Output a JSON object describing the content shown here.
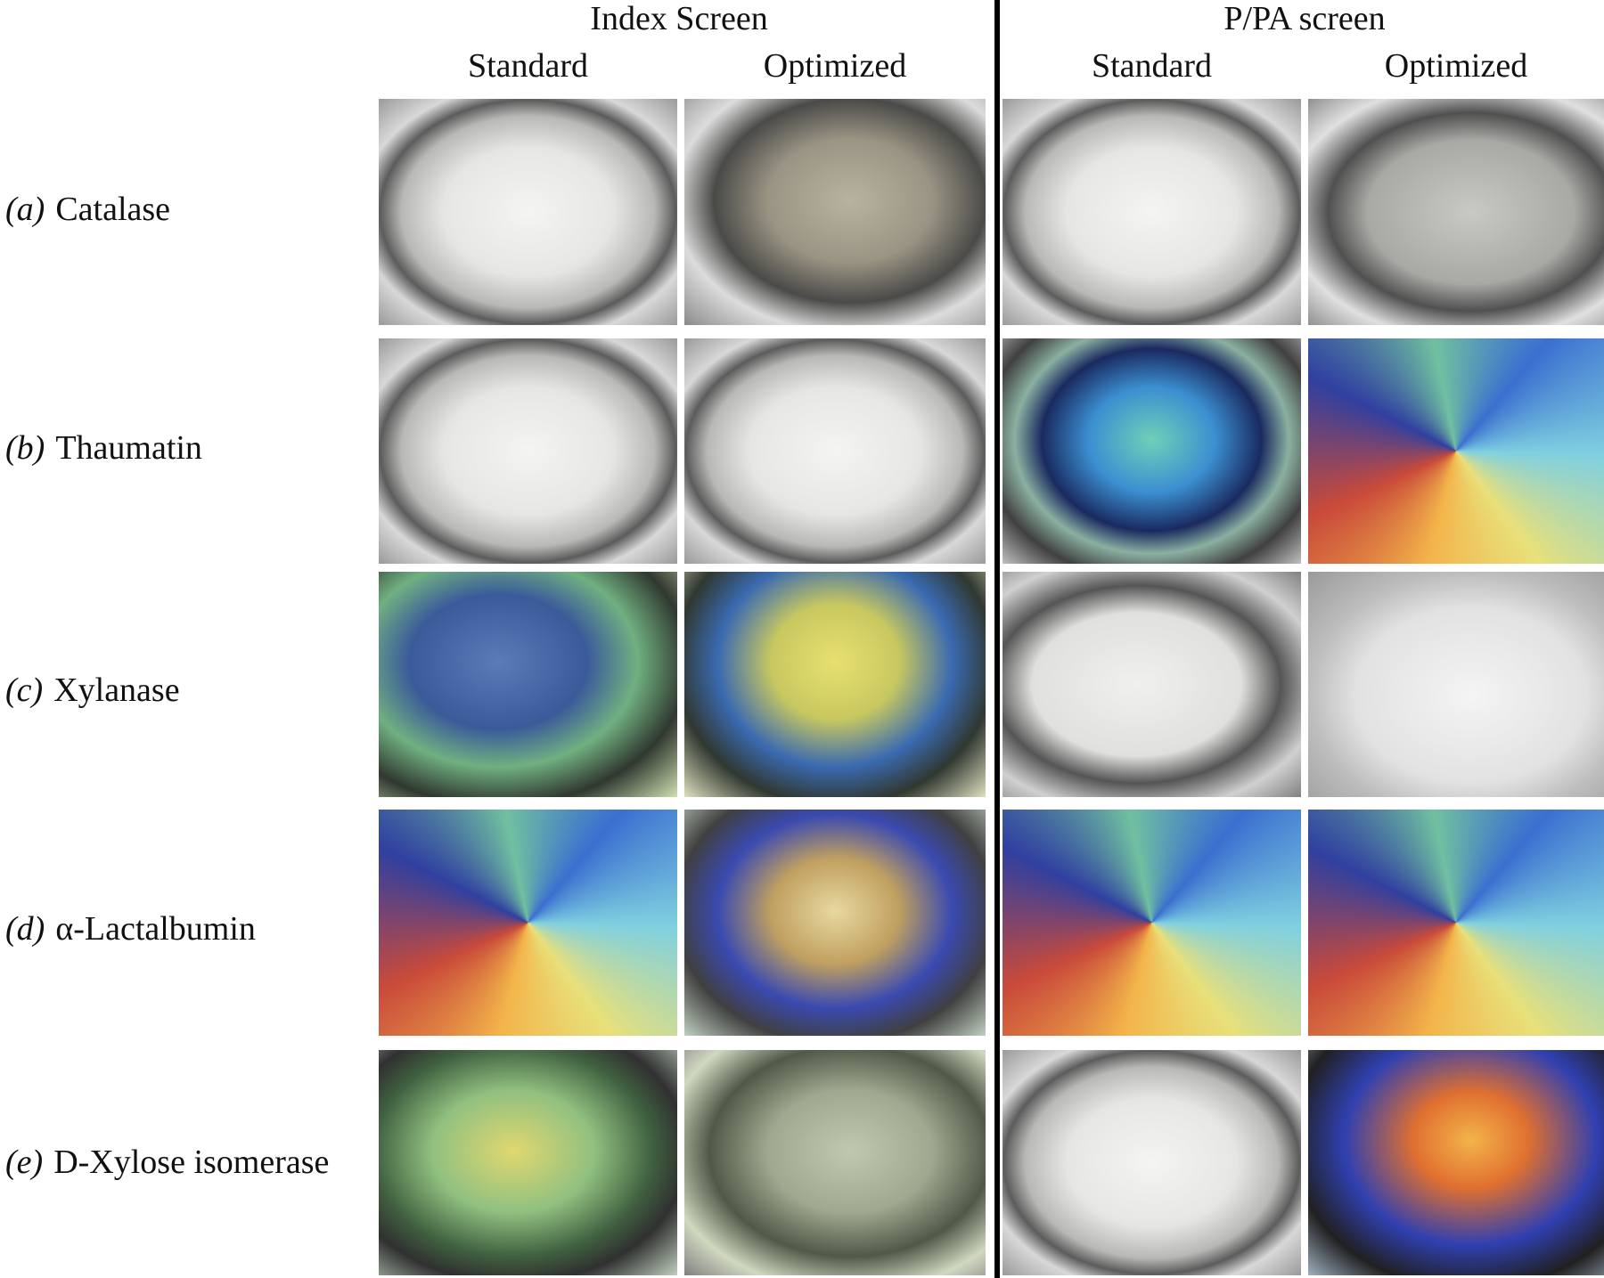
{
  "header": {
    "groups": [
      "Index Screen",
      "P/PA screen"
    ],
    "subcolumns": [
      "Standard",
      "Optimized",
      "Standard",
      "Optimized"
    ]
  },
  "rows": [
    {
      "label": "(a)",
      "name": "Catalase"
    },
    {
      "label": "(b)",
      "name": "Thaumatin"
    },
    {
      "label": "(c)",
      "name": "Xylanase"
    },
    {
      "label": "(d)",
      "name": "α-Lactalbumin"
    },
    {
      "label": "(e)",
      "name": "D-Xylose isomerase"
    }
  ]
}
